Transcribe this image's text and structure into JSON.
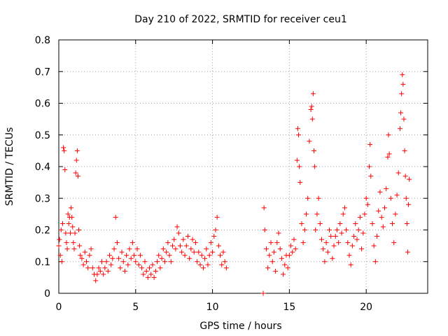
{
  "chart_data": {
    "type": "scatter",
    "title": "Day 210 of 2022, SRMTID for receiver ceu1",
    "xlabel": "GPS time / hours",
    "ylabel": "SRMTID / TECUs",
    "xlim": [
      0,
      24
    ],
    "ylim": [
      0,
      0.8
    ],
    "xticks": [
      0,
      5,
      10,
      15,
      20
    ],
    "yticks": [
      0,
      0.1,
      0.2,
      0.3,
      0.4,
      0.5,
      0.6,
      0.7,
      0.8
    ],
    "xtick_labels": [
      "0",
      "5",
      "10",
      "15",
      "20"
    ],
    "ytick_labels": [
      "0",
      "0.1",
      "0.2",
      "0.3",
      "0.4",
      "0.5",
      "0.6",
      "0.7",
      "0.8"
    ],
    "grid": true,
    "marker": "+",
    "color": "#ff0000",
    "series": [
      {
        "name": "ceu1",
        "points": [
          [
            0.0,
            0.15
          ],
          [
            0.05,
            0.17
          ],
          [
            0.1,
            0.12
          ],
          [
            0.15,
            0.2
          ],
          [
            0.2,
            0.1
          ],
          [
            0.25,
            0.22
          ],
          [
            0.3,
            0.46
          ],
          [
            0.35,
            0.45
          ],
          [
            0.4,
            0.39
          ],
          [
            0.45,
            0.19
          ],
          [
            0.5,
            0.16
          ],
          [
            0.55,
            0.14
          ],
          [
            0.6,
            0.25
          ],
          [
            0.65,
            0.22
          ],
          [
            0.7,
            0.24
          ],
          [
            0.75,
            0.19
          ],
          [
            0.8,
            0.27
          ],
          [
            0.85,
            0.24
          ],
          [
            0.9,
            0.21
          ],
          [
            0.95,
            0.16
          ],
          [
            1.0,
            0.14
          ],
          [
            1.05,
            0.19
          ],
          [
            1.1,
            0.38
          ],
          [
            1.15,
            0.42
          ],
          [
            1.2,
            0.45
          ],
          [
            1.25,
            0.37
          ],
          [
            1.3,
            0.2
          ],
          [
            1.35,
            0.15
          ],
          [
            1.4,
            0.12
          ],
          [
            1.5,
            0.11
          ],
          [
            1.6,
            0.09
          ],
          [
            1.7,
            0.13
          ],
          [
            1.8,
            0.1
          ],
          [
            1.9,
            0.08
          ],
          [
            2.0,
            0.12
          ],
          [
            2.1,
            0.14
          ],
          [
            2.2,
            0.08
          ],
          [
            2.3,
            0.06
          ],
          [
            2.4,
            0.04
          ],
          [
            2.5,
            0.06
          ],
          [
            2.6,
            0.08
          ],
          [
            2.7,
            0.07
          ],
          [
            2.8,
            0.1
          ],
          [
            2.9,
            0.06
          ],
          [
            3.0,
            0.08
          ],
          [
            3.1,
            0.1
          ],
          [
            3.2,
            0.07
          ],
          [
            3.3,
            0.12
          ],
          [
            3.4,
            0.09
          ],
          [
            3.5,
            0.11
          ],
          [
            3.6,
            0.14
          ],
          [
            3.7,
            0.24
          ],
          [
            3.8,
            0.16
          ],
          [
            3.9,
            0.11
          ],
          [
            4.0,
            0.08
          ],
          [
            4.1,
            0.13
          ],
          [
            4.2,
            0.1
          ],
          [
            4.3,
            0.07
          ],
          [
            4.4,
            0.12
          ],
          [
            4.5,
            0.09
          ],
          [
            4.6,
            0.14
          ],
          [
            4.7,
            0.11
          ],
          [
            4.8,
            0.16
          ],
          [
            4.9,
            0.12
          ],
          [
            5.0,
            0.1
          ],
          [
            5.1,
            0.14
          ],
          [
            5.2,
            0.09
          ],
          [
            5.3,
            0.12
          ],
          [
            5.4,
            0.08
          ],
          [
            5.5,
            0.06
          ],
          [
            5.6,
            0.1
          ],
          [
            5.7,
            0.07
          ],
          [
            5.8,
            0.05
          ],
          [
            5.9,
            0.08
          ],
          [
            6.0,
            0.06
          ],
          [
            6.1,
            0.09
          ],
          [
            6.2,
            0.05
          ],
          [
            6.3,
            0.07
          ],
          [
            6.4,
            0.1
          ],
          [
            6.5,
            0.12
          ],
          [
            6.6,
            0.08
          ],
          [
            6.7,
            0.11
          ],
          [
            6.8,
            0.14
          ],
          [
            6.9,
            0.1
          ],
          [
            7.0,
            0.13
          ],
          [
            7.1,
            0.16
          ],
          [
            7.2,
            0.12
          ],
          [
            7.3,
            0.1
          ],
          [
            7.4,
            0.15
          ],
          [
            7.5,
            0.17
          ],
          [
            7.6,
            0.14
          ],
          [
            7.7,
            0.21
          ],
          [
            7.8,
            0.19
          ],
          [
            7.9,
            0.15
          ],
          [
            8.0,
            0.13
          ],
          [
            8.1,
            0.17
          ],
          [
            8.2,
            0.12
          ],
          [
            8.3,
            0.15
          ],
          [
            8.4,
            0.18
          ],
          [
            8.5,
            0.11
          ],
          [
            8.6,
            0.14
          ],
          [
            8.7,
            0.17
          ],
          [
            8.8,
            0.13
          ],
          [
            8.9,
            0.16
          ],
          [
            9.0,
            0.1
          ],
          [
            9.1,
            0.13
          ],
          [
            9.2,
            0.09
          ],
          [
            9.3,
            0.12
          ],
          [
            9.4,
            0.08
          ],
          [
            9.5,
            0.11
          ],
          [
            9.6,
            0.14
          ],
          [
            9.7,
            0.09
          ],
          [
            9.8,
            0.12
          ],
          [
            9.9,
            0.16
          ],
          [
            10.0,
            0.13
          ],
          [
            10.1,
            0.18
          ],
          [
            10.2,
            0.2
          ],
          [
            10.3,
            0.24
          ],
          [
            10.4,
            0.15
          ],
          [
            10.5,
            0.12
          ],
          [
            10.6,
            0.09
          ],
          [
            10.7,
            0.13
          ],
          [
            10.8,
            0.1
          ],
          [
            10.9,
            0.08
          ],
          [
            13.3,
            0.0
          ],
          [
            13.35,
            0.27
          ],
          [
            13.4,
            0.2
          ],
          [
            13.5,
            0.14
          ],
          [
            13.6,
            0.08
          ],
          [
            13.7,
            0.12
          ],
          [
            13.8,
            0.16
          ],
          [
            13.9,
            0.1
          ],
          [
            14.0,
            0.13
          ],
          [
            14.1,
            0.07
          ],
          [
            14.2,
            0.16
          ],
          [
            14.3,
            0.19
          ],
          [
            14.4,
            0.14
          ],
          [
            14.5,
            0.11
          ],
          [
            14.6,
            0.06
          ],
          [
            14.7,
            0.09
          ],
          [
            14.8,
            0.12
          ],
          [
            14.9,
            0.08
          ],
          [
            15.0,
            0.12
          ],
          [
            15.1,
            0.15
          ],
          [
            15.2,
            0.13
          ],
          [
            15.3,
            0.17
          ],
          [
            15.4,
            0.14
          ],
          [
            15.5,
            0.42
          ],
          [
            15.55,
            0.52
          ],
          [
            15.6,
            0.5
          ],
          [
            15.65,
            0.4
          ],
          [
            15.7,
            0.35
          ],
          [
            15.8,
            0.22
          ],
          [
            15.9,
            0.16
          ],
          [
            16.0,
            0.2
          ],
          [
            16.1,
            0.25
          ],
          [
            16.2,
            0.3
          ],
          [
            16.3,
            0.48
          ],
          [
            16.4,
            0.58
          ],
          [
            16.45,
            0.59
          ],
          [
            16.5,
            0.55
          ],
          [
            16.55,
            0.63
          ],
          [
            16.6,
            0.45
          ],
          [
            16.65,
            0.4
          ],
          [
            16.7,
            0.2
          ],
          [
            16.8,
            0.25
          ],
          [
            16.9,
            0.3
          ],
          [
            17.0,
            0.22
          ],
          [
            17.1,
            0.17
          ],
          [
            17.2,
            0.14
          ],
          [
            17.3,
            0.1
          ],
          [
            17.4,
            0.16
          ],
          [
            17.5,
            0.13
          ],
          [
            17.6,
            0.2
          ],
          [
            17.7,
            0.18
          ],
          [
            17.8,
            0.11
          ],
          [
            17.9,
            0.15
          ],
          [
            18.0,
            0.18
          ],
          [
            18.1,
            0.2
          ],
          [
            18.2,
            0.16
          ],
          [
            18.3,
            0.22
          ],
          [
            18.4,
            0.19
          ],
          [
            18.5,
            0.25
          ],
          [
            18.6,
            0.27
          ],
          [
            18.7,
            0.2
          ],
          [
            18.8,
            0.16
          ],
          [
            18.9,
            0.12
          ],
          [
            19.0,
            0.09
          ],
          [
            19.1,
            0.15
          ],
          [
            19.2,
            0.18
          ],
          [
            19.3,
            0.22
          ],
          [
            19.4,
            0.17
          ],
          [
            19.5,
            0.2
          ],
          [
            19.6,
            0.24
          ],
          [
            19.7,
            0.14
          ],
          [
            19.8,
            0.19
          ],
          [
            19.9,
            0.25
          ],
          [
            20.0,
            0.3
          ],
          [
            20.1,
            0.28
          ],
          [
            20.2,
            0.4
          ],
          [
            20.25,
            0.47
          ],
          [
            20.3,
            0.37
          ],
          [
            20.4,
            0.22
          ],
          [
            20.5,
            0.15
          ],
          [
            20.6,
            0.1
          ],
          [
            20.7,
            0.18
          ],
          [
            20.8,
            0.26
          ],
          [
            20.9,
            0.32
          ],
          [
            21.0,
            0.24
          ],
          [
            21.1,
            0.21
          ],
          [
            21.2,
            0.27
          ],
          [
            21.3,
            0.33
          ],
          [
            21.4,
            0.43
          ],
          [
            21.45,
            0.5
          ],
          [
            21.5,
            0.44
          ],
          [
            21.6,
            0.3
          ],
          [
            21.7,
            0.22
          ],
          [
            21.8,
            0.16
          ],
          [
            21.9,
            0.25
          ],
          [
            22.0,
            0.31
          ],
          [
            22.1,
            0.38
          ],
          [
            22.2,
            0.52
          ],
          [
            22.25,
            0.57
          ],
          [
            22.3,
            0.63
          ],
          [
            22.35,
            0.69
          ],
          [
            22.4,
            0.66
          ],
          [
            22.45,
            0.55
          ],
          [
            22.5,
            0.45
          ],
          [
            22.55,
            0.37
          ],
          [
            22.6,
            0.3
          ],
          [
            22.65,
            0.22
          ],
          [
            22.7,
            0.13
          ],
          [
            22.75,
            0.28
          ],
          [
            22.8,
            0.36
          ]
        ]
      }
    ]
  }
}
